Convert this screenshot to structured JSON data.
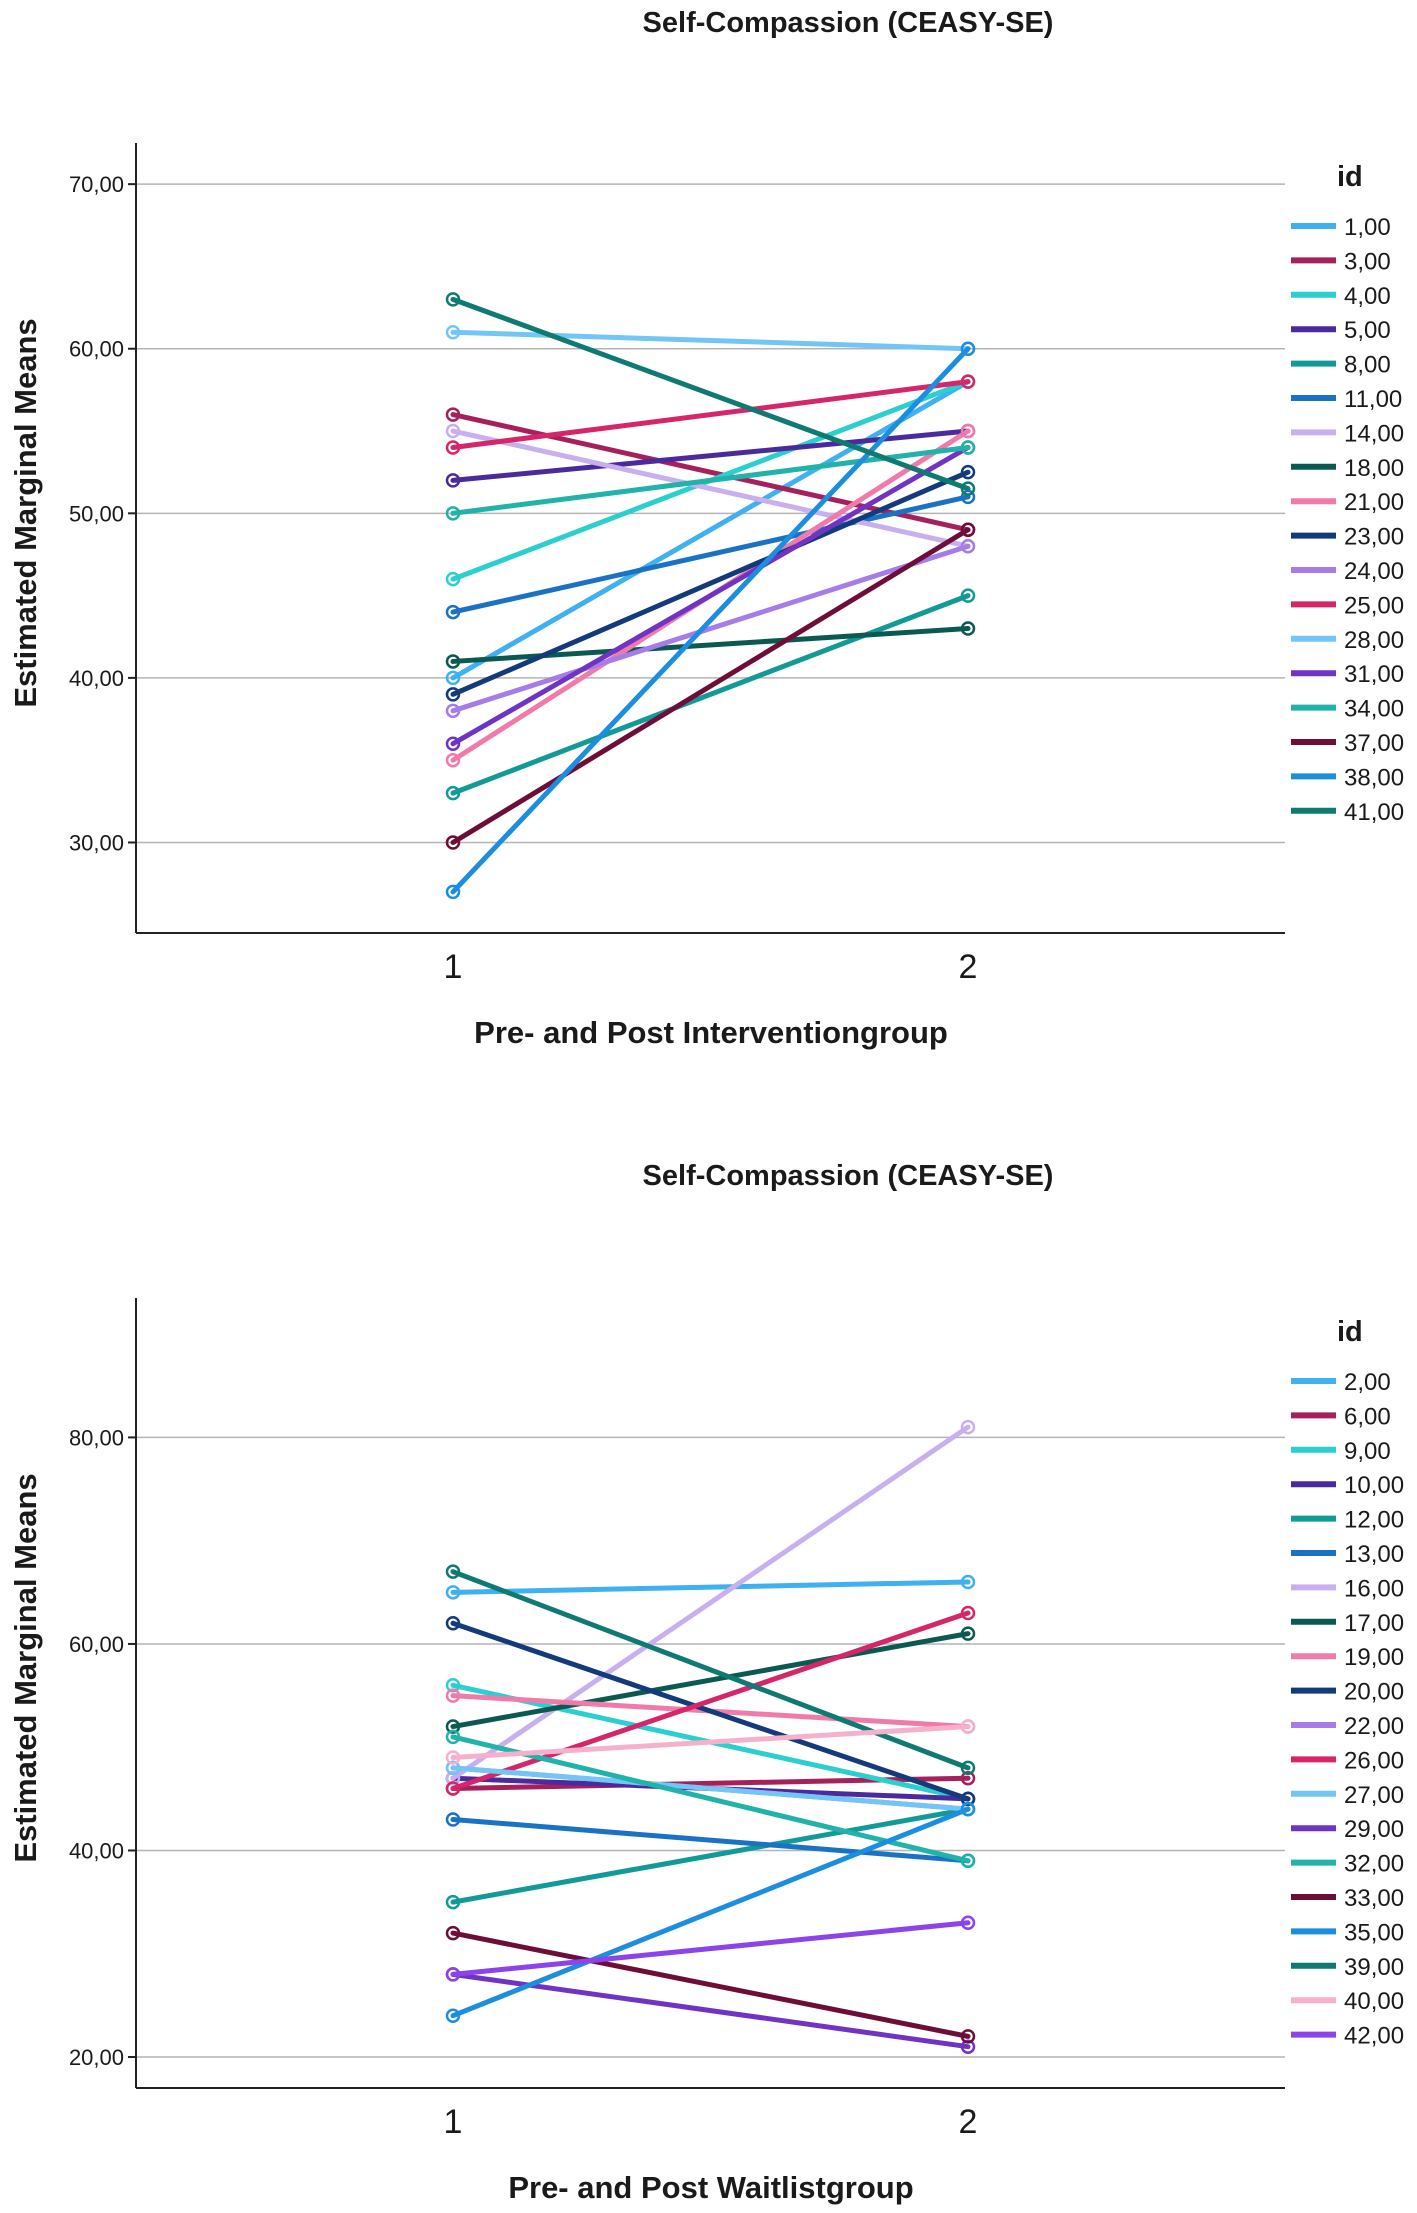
{
  "chart_data": [
    {
      "type": "line",
      "title": "Self-Compassion (CEASY-SE)",
      "xlabel": "Pre- and Post Interventiongroup",
      "ylabel": "Estimated Marginal Means",
      "categories": [
        "1",
        "2"
      ],
      "yticks": [
        "30,00",
        "40,00",
        "50,00",
        "60,00",
        "70,00"
      ],
      "ytick_values": [
        30,
        40,
        50,
        60,
        70
      ],
      "ylim": [
        24.5,
        72.5
      ],
      "grid": true,
      "legend_title": "id",
      "legend_position": "right",
      "series": [
        {
          "name": "1,00",
          "color": "#3fb0f0",
          "values": [
            40,
            58
          ]
        },
        {
          "name": "3,00",
          "color": "#a6205c",
          "values": [
            56,
            49
          ]
        },
        {
          "name": "4,00",
          "color": "#2ccfcf",
          "values": [
            46,
            58
          ]
        },
        {
          "name": "5,00",
          "color": "#4b2a9e",
          "values": [
            52,
            55
          ]
        },
        {
          "name": "8,00",
          "color": "#119a96",
          "values": [
            33,
            45
          ]
        },
        {
          "name": "11,00",
          "color": "#1a72c4",
          "values": [
            44,
            51
          ]
        },
        {
          "name": "14,00",
          "color": "#c8b0f0",
          "values": [
            55,
            48
          ]
        },
        {
          "name": "18,00",
          "color": "#0b5a52",
          "values": [
            41,
            43
          ]
        },
        {
          "name": "21,00",
          "color": "#f07aaa",
          "values": [
            35,
            55
          ]
        },
        {
          "name": "23,00",
          "color": "#133a7a",
          "values": [
            39,
            52.5
          ]
        },
        {
          "name": "24,00",
          "color": "#a67ce8",
          "values": [
            38,
            48
          ]
        },
        {
          "name": "25,00",
          "color": "#d6266a",
          "values": [
            54,
            58
          ]
        },
        {
          "name": "28,00",
          "color": "#72c6f6",
          "values": [
            61,
            60
          ]
        },
        {
          "name": "31,00",
          "color": "#7034c4",
          "values": [
            36,
            54
          ]
        },
        {
          "name": "34,00",
          "color": "#21b2aa",
          "values": [
            50,
            54
          ]
        },
        {
          "name": "37,00",
          "color": "#6e0e38",
          "values": [
            30,
            49
          ]
        },
        {
          "name": "38,00",
          "color": "#1c8ee0",
          "values": [
            27,
            60
          ]
        },
        {
          "name": "41,00",
          "color": "#0f7a72",
          "values": [
            63,
            51.5
          ]
        }
      ]
    },
    {
      "type": "line",
      "title": "Self-Compassion (CEASY-SE)",
      "xlabel": "Pre- and Post Waitlistgroup",
      "ylabel": "Estimated Marginal Means",
      "categories": [
        "1",
        "2"
      ],
      "yticks": [
        "20,00",
        "40,00",
        "60,00",
        "80,00"
      ],
      "ytick_values": [
        20,
        40,
        60,
        80
      ],
      "ylim": [
        17,
        93.5
      ],
      "grid": true,
      "legend_title": "id",
      "legend_position": "right",
      "series": [
        {
          "name": "2,00",
          "color": "#3fb0f0",
          "values": [
            65,
            66
          ]
        },
        {
          "name": "6,00",
          "color": "#a6205c",
          "values": [
            46,
            47
          ]
        },
        {
          "name": "9,00",
          "color": "#2ccfcf",
          "values": [
            56,
            45
          ]
        },
        {
          "name": "10,00",
          "color": "#4b2a9e",
          "values": [
            47,
            45
          ]
        },
        {
          "name": "12,00",
          "color": "#119a96",
          "values": [
            35,
            44
          ]
        },
        {
          "name": "13,00",
          "color": "#1a72c4",
          "values": [
            43,
            39
          ]
        },
        {
          "name": "16,00",
          "color": "#c8b0f0",
          "values": [
            47,
            81
          ]
        },
        {
          "name": "17,00",
          "color": "#0b5a52",
          "values": [
            52,
            61
          ]
        },
        {
          "name": "19,00",
          "color": "#f07aaa",
          "values": [
            55,
            52
          ]
        },
        {
          "name": "20,00",
          "color": "#133a7a",
          "values": [
            62,
            45
          ]
        },
        {
          "name": "22,00",
          "color": "#a67ce8",
          "values": [
            48,
            44
          ]
        },
        {
          "name": "26,00",
          "color": "#d6266a",
          "values": [
            46,
            63
          ]
        },
        {
          "name": "27,00",
          "color": "#72c6f6",
          "values": [
            48,
            44
          ]
        },
        {
          "name": "29,00",
          "color": "#7034c4",
          "values": [
            28,
            21
          ]
        },
        {
          "name": "32,00",
          "color": "#21b2aa",
          "values": [
            51,
            39
          ]
        },
        {
          "name": "33,00",
          "color": "#6e0e38",
          "values": [
            32,
            22
          ]
        },
        {
          "name": "35,00",
          "color": "#1c8ee0",
          "values": [
            24,
            44
          ]
        },
        {
          "name": "39,00",
          "color": "#0f7a72",
          "values": [
            67,
            48
          ]
        },
        {
          "name": "40,00",
          "color": "#f7b0cc",
          "values": [
            49,
            52
          ]
        },
        {
          "name": "42,00",
          "color": "#8a44ea",
          "values": [
            28,
            33
          ]
        }
      ]
    }
  ]
}
